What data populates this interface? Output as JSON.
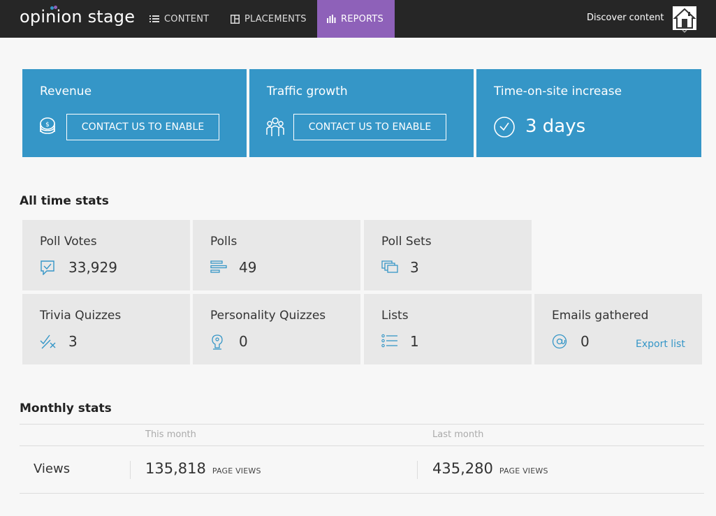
{
  "app": {
    "logo_text": "opinion stage"
  },
  "nav": {
    "items": [
      {
        "label": "CONTENT",
        "icon": "list-icon"
      },
      {
        "label": "PLACEMENTS",
        "icon": "layout-icon"
      },
      {
        "label": "REPORTS",
        "icon": "bar-chart-icon",
        "active": true
      }
    ],
    "discover_label": "Discover content",
    "active_color": "#8e61b9"
  },
  "cards": {
    "revenue": {
      "title": "Revenue",
      "button_label": "CONTACT US TO ENABLE",
      "icon": "coins-icon"
    },
    "traffic": {
      "title": "Traffic growth",
      "button_label": "CONTACT US TO ENABLE",
      "icon": "people-icon"
    },
    "time_on_site": {
      "title": "Time-on-site increase",
      "value": "3 days",
      "icon": "clock-icon"
    },
    "color": "#3596c7"
  },
  "all_time": {
    "title": "All time stats",
    "tiles": [
      {
        "label": "Poll Votes",
        "value": "33,929",
        "icon": "vote-icon"
      },
      {
        "label": "Polls",
        "value": "49",
        "icon": "poll-bars-icon"
      },
      {
        "label": "Poll Sets",
        "value": "3",
        "icon": "poll-sets-icon"
      },
      {
        "label": "Trivia Quizzes",
        "value": "3",
        "icon": "trivia-icon"
      },
      {
        "label": "Personality Quizzes",
        "value": "0",
        "icon": "personality-icon"
      },
      {
        "label": "Lists",
        "value": "1",
        "icon": "list-icon"
      },
      {
        "label": "Emails gathered",
        "value": "0",
        "icon": "at-icon",
        "link": "Export list"
      }
    ]
  },
  "monthly": {
    "title": "Monthly stats",
    "columns": [
      "This month",
      "Last month"
    ],
    "rows": [
      {
        "label": "Views",
        "this_month": "135,818",
        "last_month": "435,280",
        "unit": "PAGE VIEWS"
      }
    ]
  }
}
